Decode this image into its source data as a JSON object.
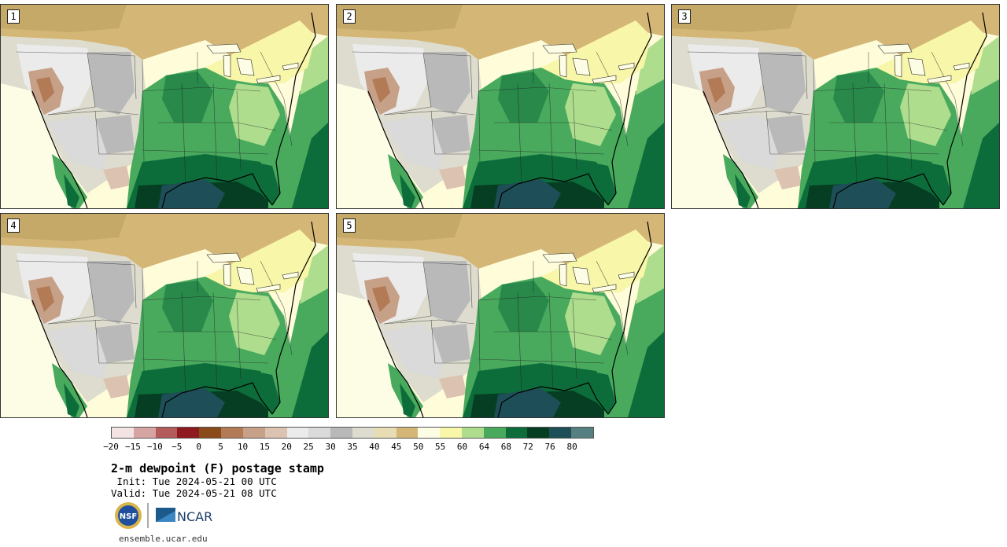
{
  "panels": [
    {
      "label": "1"
    },
    {
      "label": "2"
    },
    {
      "label": "3"
    },
    {
      "label": "4"
    },
    {
      "label": "5"
    }
  ],
  "colorbar": {
    "colors": [
      "#f3e3e3",
      "#d7a4a4",
      "#b35a5a",
      "#8e1a1f",
      "#8a4a1a",
      "#b27a55",
      "#c7a088",
      "#dcc2b0",
      "#ebebeb",
      "#dadada",
      "#b9b9b9",
      "#dddcce",
      "#e7dcb4",
      "#d4b676",
      "#fdfde6",
      "#f8f6a8",
      "#aedd8e",
      "#49aa5e",
      "#0c6d3b",
      "#053e22",
      "#1e4f58",
      "#557f80"
    ],
    "ticks": [
      "−20",
      "−15",
      "−10",
      "−5",
      "0",
      "5",
      "10",
      "15",
      "20",
      "25",
      "30",
      "35",
      "40",
      "45",
      "50",
      "55",
      "60",
      "64",
      "68",
      "72",
      "76",
      "80"
    ]
  },
  "title": "2-m dewpoint (F) postage stamp",
  "init": " Init: Tue 2024-05-21 00 UTC",
  "valid": "Valid: Tue 2024-05-21 08 UTC",
  "logos": {
    "nsf": "NSF",
    "ncar": "NCAR"
  },
  "site": "ensemble.ucar.edu"
}
